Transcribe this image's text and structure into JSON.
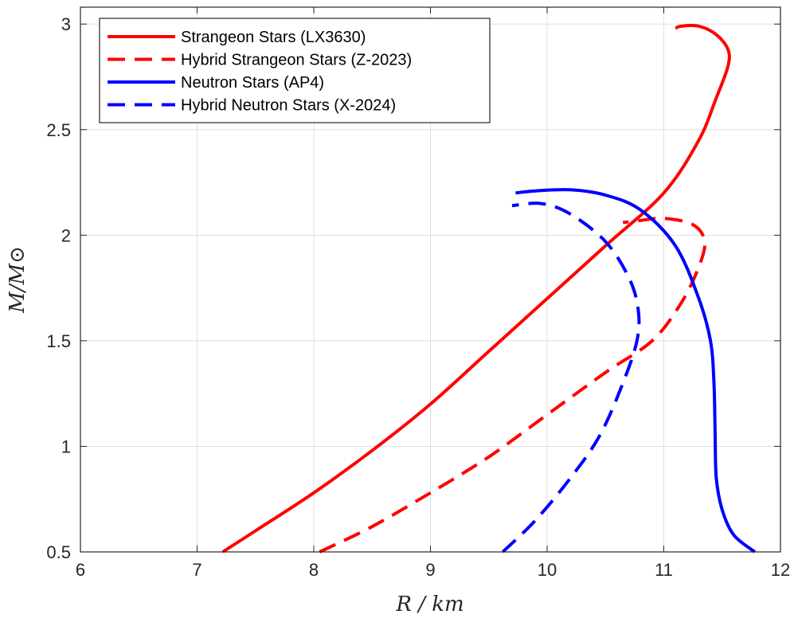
{
  "chart_data": {
    "type": "line",
    "title": "",
    "xlabel": "R / km",
    "ylabel": "M/M⊙",
    "xlim": [
      6,
      12
    ],
    "ylim": [
      0.5,
      3.08
    ],
    "grid": true,
    "legend_position": "top-left",
    "x_ticks": [
      "6",
      "7",
      "8",
      "9",
      "10",
      "11",
      "12"
    ],
    "y_ticks": [
      "0.5",
      "1",
      "1.5",
      "2",
      "2.5",
      "3"
    ],
    "series": [
      {
        "name": "Strangeon Stars (LX3630)",
        "color": "#ff0000",
        "style": "solid",
        "points": [
          [
            7.22,
            0.5
          ],
          [
            7.5,
            0.6
          ],
          [
            8.0,
            0.78
          ],
          [
            8.5,
            0.98
          ],
          [
            9.0,
            1.2
          ],
          [
            9.5,
            1.45
          ],
          [
            10.0,
            1.7
          ],
          [
            10.5,
            1.95
          ],
          [
            11.0,
            2.2
          ],
          [
            11.3,
            2.45
          ],
          [
            11.45,
            2.65
          ],
          [
            11.55,
            2.8
          ],
          [
            11.55,
            2.88
          ],
          [
            11.45,
            2.95
          ],
          [
            11.3,
            2.99
          ],
          [
            11.15,
            2.99
          ],
          [
            11.1,
            2.98
          ]
        ]
      },
      {
        "name": "Hybrid Strangeon Stars (Z-2023)",
        "color": "#ff0000",
        "style": "dashed",
        "points": [
          [
            8.05,
            0.5
          ],
          [
            8.5,
            0.62
          ],
          [
            9.0,
            0.78
          ],
          [
            9.5,
            0.95
          ],
          [
            10.0,
            1.15
          ],
          [
            10.5,
            1.35
          ],
          [
            10.9,
            1.5
          ],
          [
            11.15,
            1.68
          ],
          [
            11.3,
            1.85
          ],
          [
            11.35,
            1.97
          ],
          [
            11.25,
            2.05
          ],
          [
            11.0,
            2.08
          ],
          [
            10.8,
            2.07
          ],
          [
            10.65,
            2.06
          ]
        ]
      },
      {
        "name": "Neutron Stars (AP4)",
        "color": "#0000ff",
        "style": "solid",
        "points": [
          [
            11.78,
            0.5
          ],
          [
            11.6,
            0.58
          ],
          [
            11.5,
            0.7
          ],
          [
            11.45,
            0.85
          ],
          [
            11.44,
            1.05
          ],
          [
            11.43,
            1.3
          ],
          [
            11.4,
            1.5
          ],
          [
            11.3,
            1.7
          ],
          [
            11.1,
            1.95
          ],
          [
            10.8,
            2.12
          ],
          [
            10.5,
            2.19
          ],
          [
            10.2,
            2.215
          ],
          [
            9.9,
            2.21
          ],
          [
            9.73,
            2.2
          ]
        ]
      },
      {
        "name": "Hybrid Neutron Stars (X-2024)",
        "color": "#0000ff",
        "style": "dashed",
        "points": [
          [
            9.62,
            0.5
          ],
          [
            9.9,
            0.65
          ],
          [
            10.2,
            0.85
          ],
          [
            10.45,
            1.05
          ],
          [
            10.65,
            1.3
          ],
          [
            10.77,
            1.5
          ],
          [
            10.78,
            1.65
          ],
          [
            10.7,
            1.8
          ],
          [
            10.5,
            1.97
          ],
          [
            10.2,
            2.1
          ],
          [
            9.95,
            2.15
          ],
          [
            9.7,
            2.14
          ]
        ]
      }
    ]
  }
}
